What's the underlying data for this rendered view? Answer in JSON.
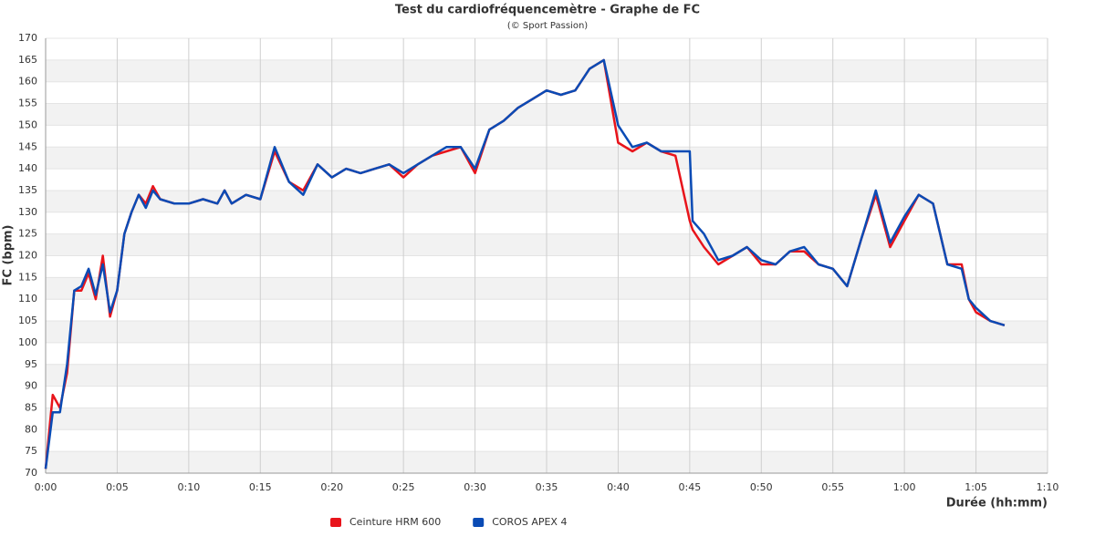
{
  "chart_data": {
    "type": "line",
    "title": "Test du cardiofréquencemètre - Graphe de FC",
    "subtitle": "(© Sport Passion)",
    "x_label": "Durée (hh:mm)",
    "y_label": "FC (bpm)",
    "x": [
      0,
      0.5,
      1,
      1.5,
      2,
      2.5,
      3,
      3.5,
      4,
      4.5,
      5,
      5.5,
      6,
      6.5,
      7,
      7.5,
      8,
      9,
      10,
      11,
      12,
      12.5,
      13,
      14,
      15,
      16,
      17,
      18,
      19,
      20,
      21,
      22,
      23,
      24,
      25,
      26,
      27,
      28,
      29,
      30,
      31,
      32,
      33,
      34,
      35,
      36,
      37,
      38,
      39,
      40,
      41,
      42,
      43,
      44,
      45,
      45.2,
      46,
      47,
      48,
      49,
      50,
      51,
      52,
      53,
      54,
      55,
      56,
      57,
      58,
      59,
      60,
      61,
      62,
      63,
      64,
      64.5,
      65,
      66,
      67
    ],
    "series": [
      {
        "name": "Ceinture HRM 600",
        "color": "#e8141b",
        "values": [
          71,
          88,
          85,
          93,
          112,
          112,
          116,
          110,
          120,
          106,
          112,
          125,
          130,
          134,
          132,
          136,
          133,
          132,
          132,
          133,
          132,
          135,
          132,
          134,
          133,
          144,
          137,
          135,
          141,
          138,
          140,
          139,
          140,
          141,
          138,
          141,
          143,
          144,
          145,
          139,
          149,
          151,
          154,
          156,
          158,
          157,
          158,
          163,
          165,
          146,
          144,
          146,
          144,
          143,
          128,
          126,
          122,
          118,
          120,
          122,
          118,
          118,
          121,
          121,
          118,
          117,
          113,
          124,
          134,
          122,
          128,
          134,
          132,
          118,
          118,
          110,
          107,
          105,
          104
        ]
      },
      {
        "name": "COROS APEX 4",
        "color": "#0a4bb5",
        "values": [
          71,
          84,
          84,
          95,
          112,
          113,
          117,
          111,
          118,
          107,
          112,
          125,
          130,
          134,
          131,
          135,
          133,
          132,
          132,
          133,
          132,
          135,
          132,
          134,
          133,
          145,
          137,
          134,
          141,
          138,
          140,
          139,
          140,
          141,
          139,
          141,
          143,
          145,
          145,
          140,
          149,
          151,
          154,
          156,
          158,
          157,
          158,
          163,
          165,
          150,
          145,
          146,
          144,
          144,
          144,
          128,
          125,
          119,
          120,
          122,
          119,
          118,
          121,
          122,
          118,
          117,
          113,
          124,
          135,
          123,
          129,
          134,
          132,
          118,
          117,
          110,
          108,
          105,
          104
        ]
      }
    ],
    "xlim": [
      0,
      70
    ],
    "xticks": [
      {
        "value": 0,
        "label": "0:00"
      },
      {
        "value": 5,
        "label": "0:05"
      },
      {
        "value": 10,
        "label": "0:10"
      },
      {
        "value": 15,
        "label": "0:15"
      },
      {
        "value": 20,
        "label": "0:20"
      },
      {
        "value": 25,
        "label": "0:25"
      },
      {
        "value": 30,
        "label": "0:30"
      },
      {
        "value": 35,
        "label": "0:35"
      },
      {
        "value": 40,
        "label": "0:40"
      },
      {
        "value": 45,
        "label": "0:45"
      },
      {
        "value": 50,
        "label": "0:50"
      },
      {
        "value": 55,
        "label": "0:55"
      },
      {
        "value": 60,
        "label": "1:00"
      },
      {
        "value": 65,
        "label": "1:05"
      },
      {
        "value": 70,
        "label": "1:10"
      }
    ],
    "ylim": [
      70,
      170
    ],
    "yticks": [
      70,
      75,
      80,
      85,
      90,
      95,
      100,
      105,
      110,
      115,
      120,
      125,
      130,
      135,
      140,
      145,
      150,
      155,
      160,
      165,
      170
    ],
    "grid": true,
    "legend": "bottom"
  }
}
